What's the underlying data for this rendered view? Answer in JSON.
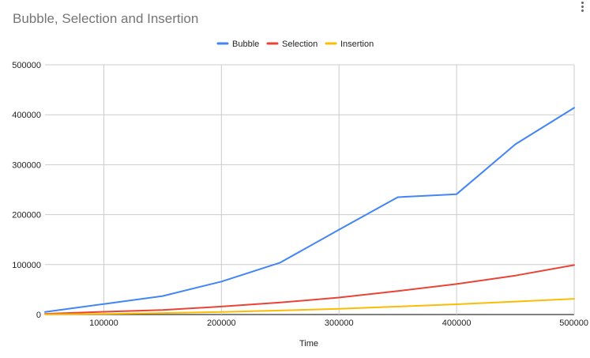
{
  "chart_data": {
    "type": "line",
    "title": "Bubble, Selection and Insertion",
    "xlabel": "Time",
    "ylabel": "",
    "xlim": [
      50000,
      500000
    ],
    "ylim": [
      0,
      500000
    ],
    "x_ticks": [
      100000,
      200000,
      300000,
      400000,
      500000
    ],
    "y_ticks": [
      0,
      100000,
      200000,
      300000,
      400000,
      500000
    ],
    "grid": true,
    "legend_position": "top",
    "x": [
      50000,
      100000,
      150000,
      200000,
      250000,
      300000,
      350000,
      400000,
      450000,
      500000
    ],
    "series": [
      {
        "name": "Bubble",
        "color": "#4285f4",
        "values": [
          5000,
          21000,
          37000,
          66000,
          104000,
          170000,
          235000,
          241000,
          341000,
          414000
        ]
      },
      {
        "name": "Selection",
        "color": "#ea4335",
        "values": [
          1500,
          5500,
          9000,
          16000,
          24000,
          34000,
          47000,
          61000,
          78000,
          99000
        ]
      },
      {
        "name": "Insertion",
        "color": "#fbbc04",
        "values": [
          400,
          1300,
          3000,
          5000,
          8000,
          11500,
          16000,
          20500,
          26000,
          31500
        ]
      }
    ]
  }
}
